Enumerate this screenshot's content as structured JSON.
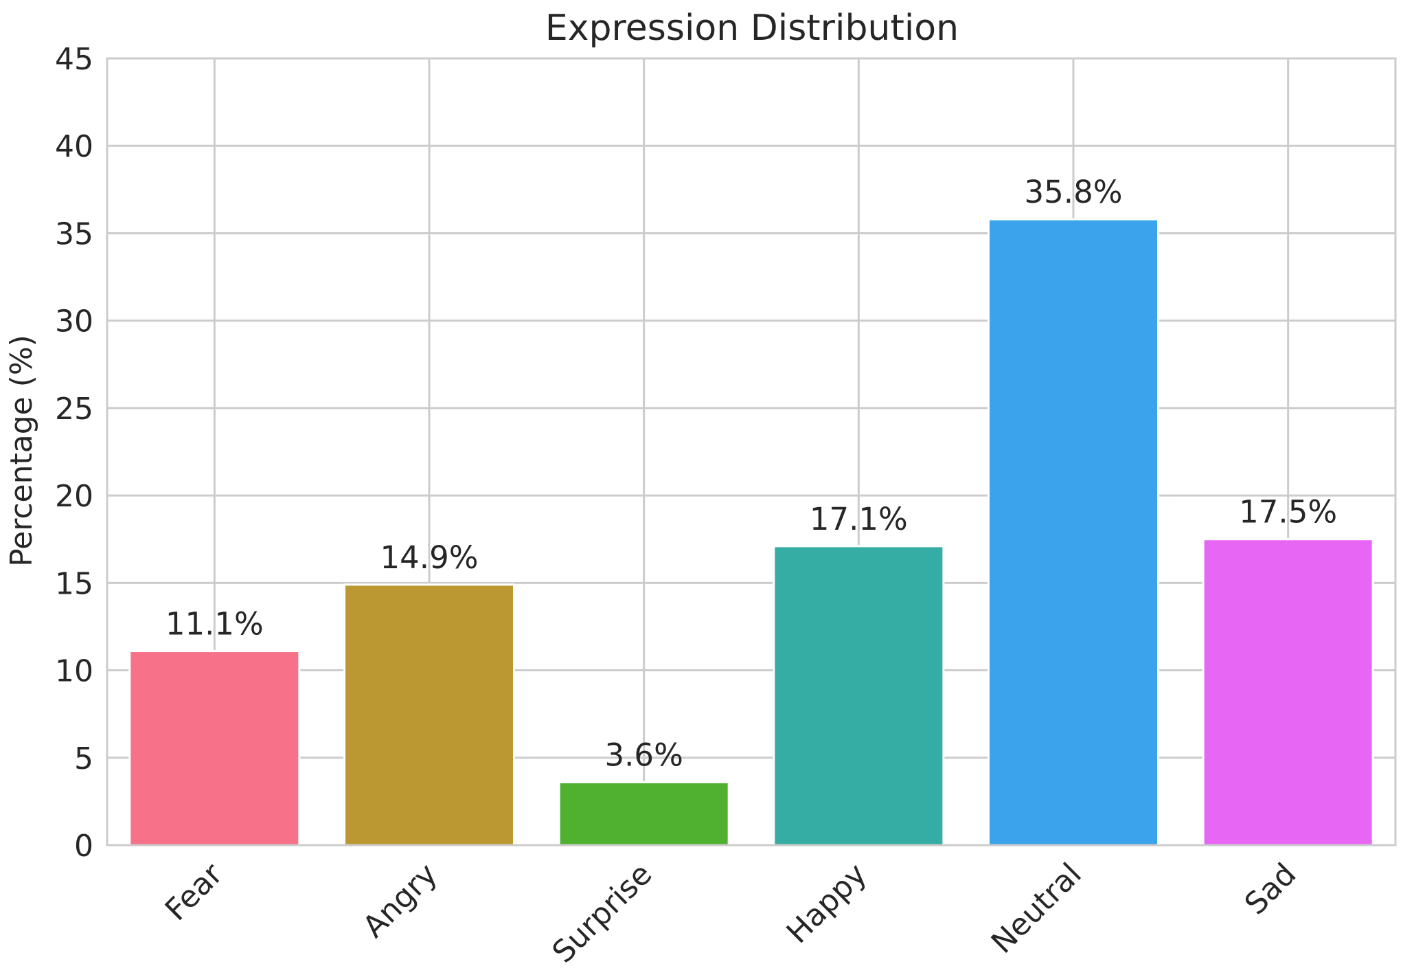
{
  "chart_data": {
    "type": "bar",
    "title": "Expression Distribution",
    "xlabel": "",
    "ylabel": "Percentage (%)",
    "ylim": [
      0,
      45
    ],
    "yticks": [
      0,
      5,
      10,
      15,
      20,
      25,
      30,
      35,
      40,
      45
    ],
    "categories": [
      "Fear",
      "Angry",
      "Surprise",
      "Happy",
      "Neutral",
      "Sad"
    ],
    "values": [
      11.1,
      14.9,
      3.6,
      17.1,
      35.8,
      17.5
    ],
    "value_labels": [
      "11.1%",
      "14.9%",
      "3.6%",
      "17.1%",
      "35.8%",
      "17.5%"
    ],
    "colors": [
      "#f77189",
      "#bb9832",
      "#50b131",
      "#36ada4",
      "#3ba3ec",
      "#e866f4"
    ],
    "grid": true,
    "legend": "none"
  }
}
